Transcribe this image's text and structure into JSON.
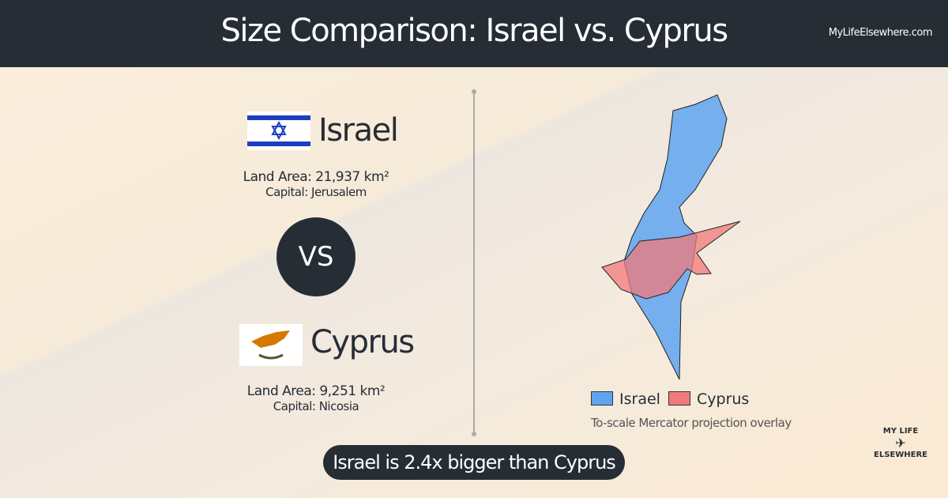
{
  "header": {
    "title": "Size Comparison: Israel vs. Cyprus",
    "site": "MyLifeElsewhere.com"
  },
  "country_a": {
    "name": "Israel",
    "land_area": "Land Area: 21,937 km²",
    "capital": "Capital: Jerusalem"
  },
  "vs": "VS",
  "country_b": {
    "name": "Cyprus",
    "land_area": "Land Area: 9,251 km²",
    "capital": "Capital: Nicosia"
  },
  "legend": {
    "items": [
      "Israel",
      "Cyprus"
    ],
    "note": "To-scale Mercator projection overlay"
  },
  "summary": "Israel is 2.4x bigger than Cyprus",
  "logo": {
    "line1": "MY LIFE",
    "line2": "ELSEWHERE"
  }
}
